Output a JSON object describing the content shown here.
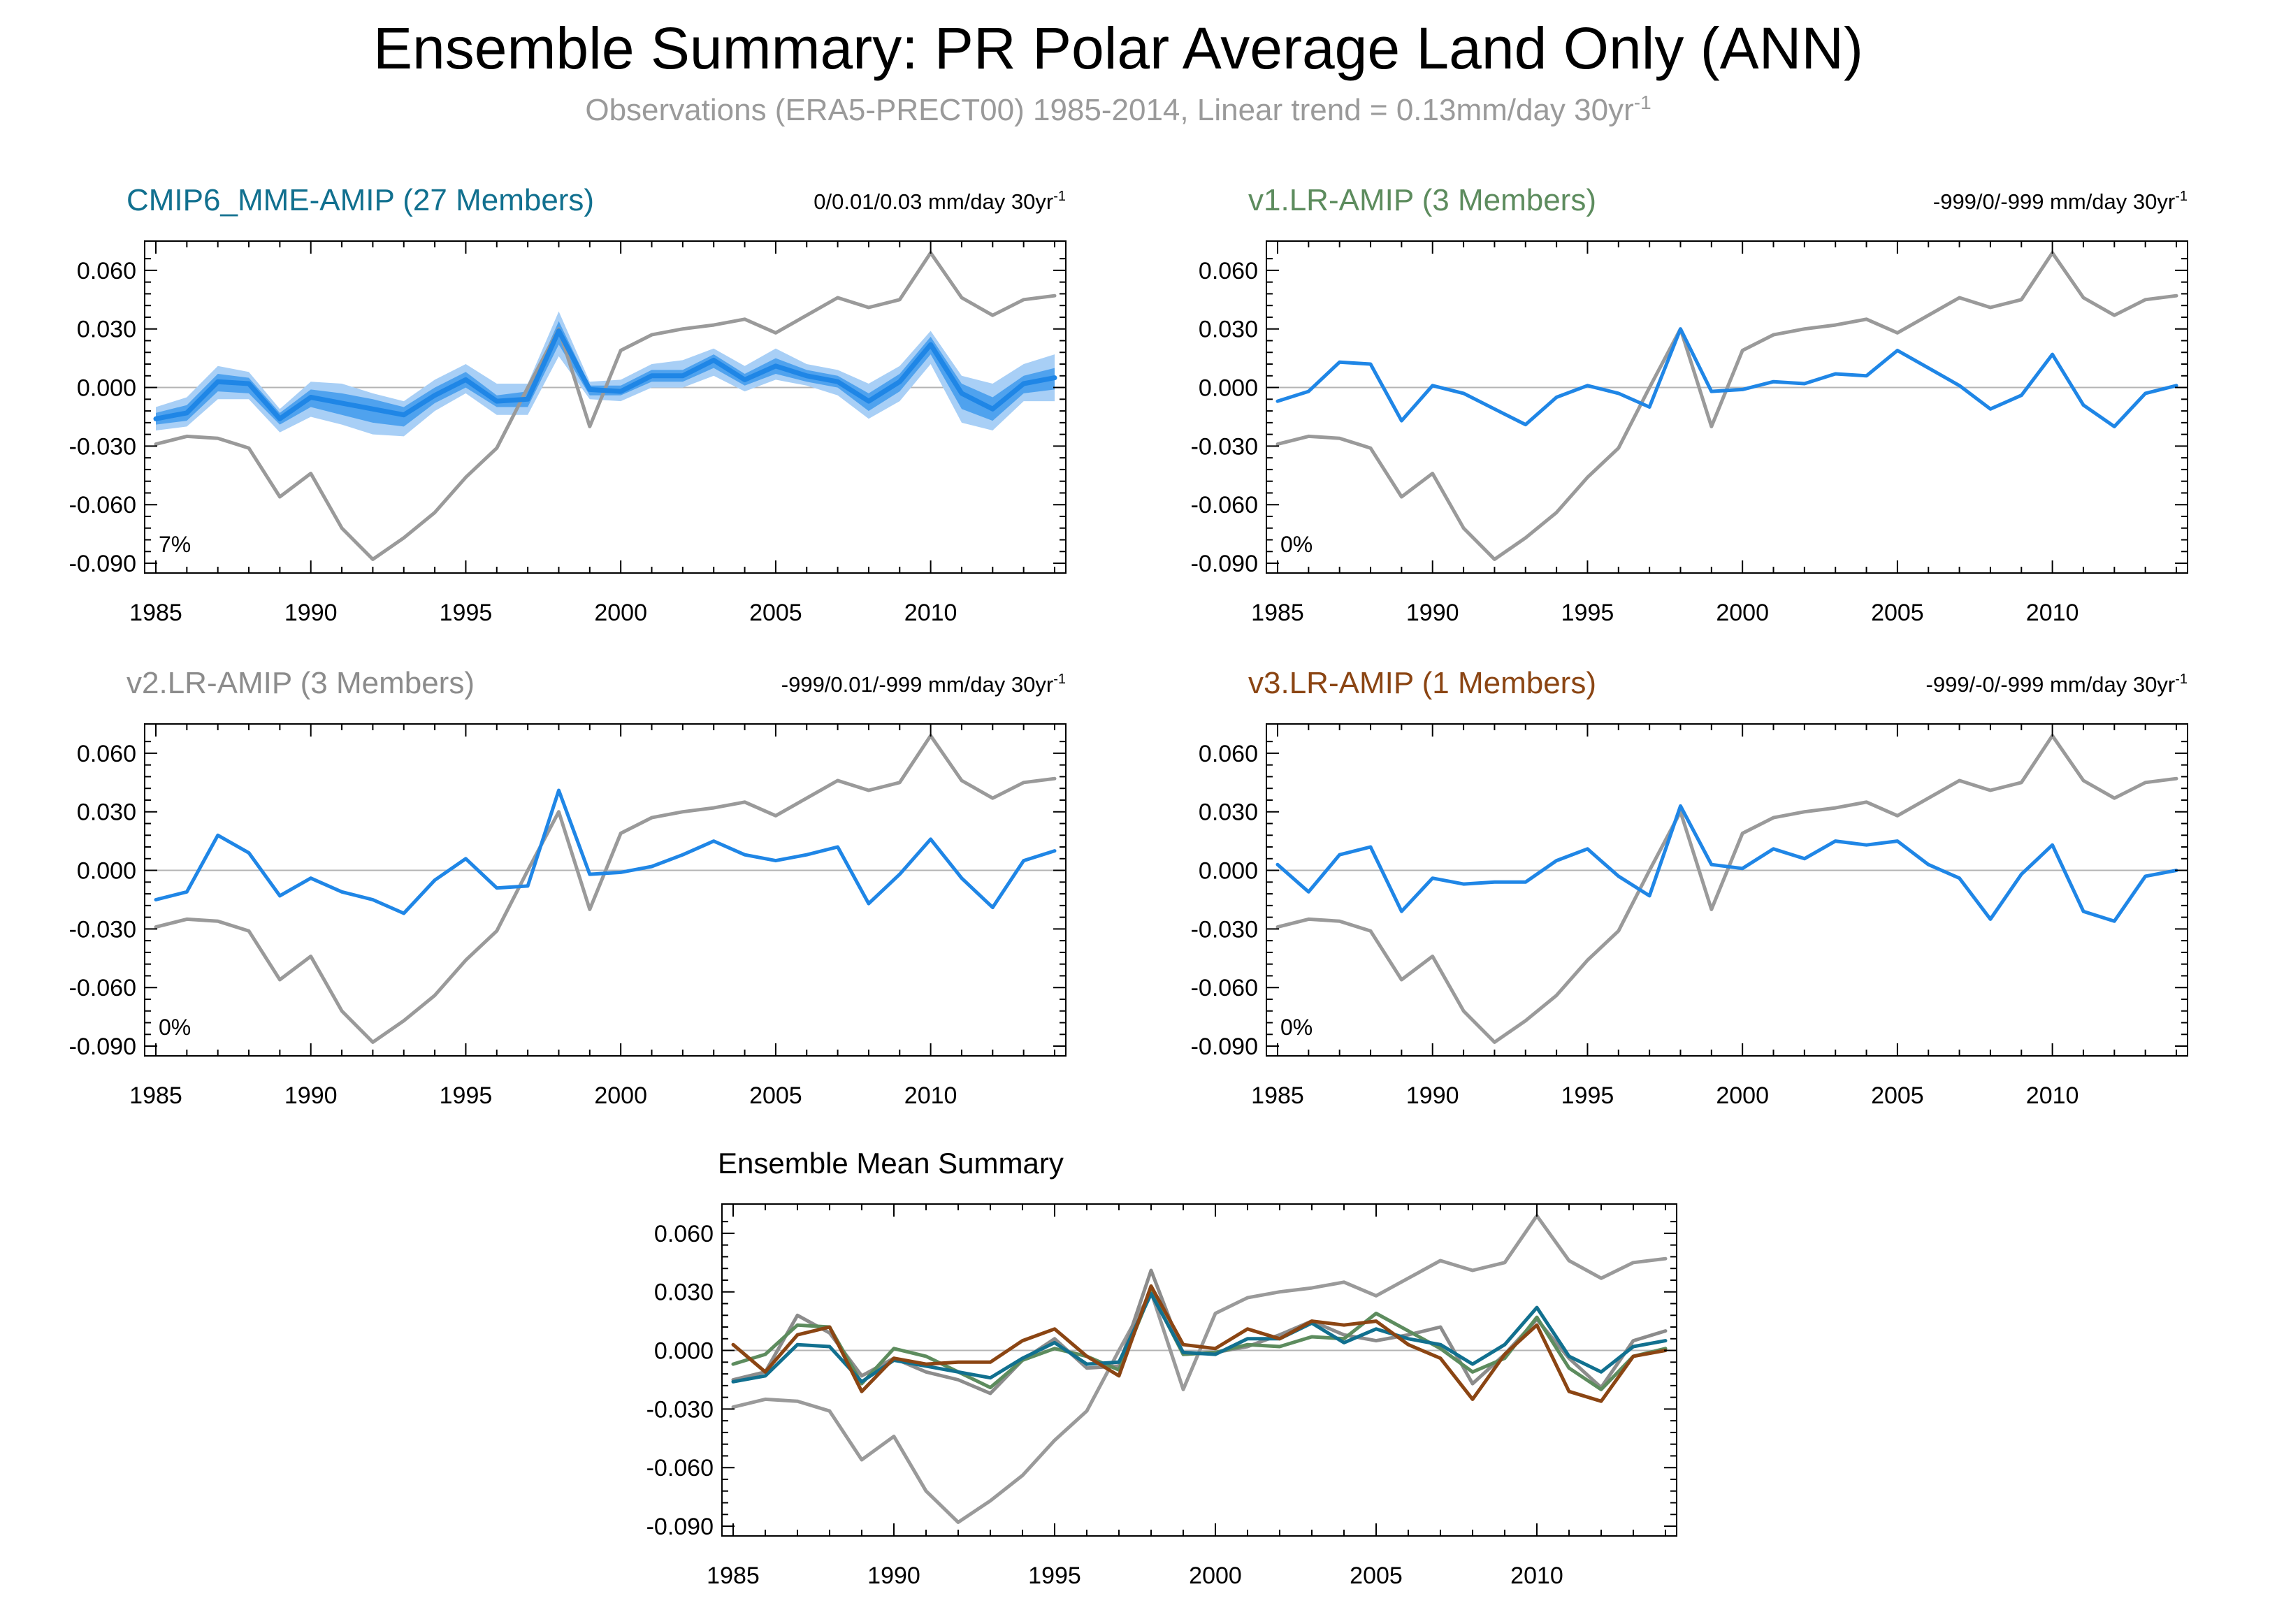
{
  "page": {
    "title": "Ensemble Summary: PR Polar Average Land Only (ANN)",
    "subtitle_main": "Observations (ERA5-PRECT00) 1985-2014, Linear trend = 0.13mm/day 30yr",
    "subtitle_sup": "-1"
  },
  "colors": {
    "obs": "#9a9a9a",
    "model": "#1f86e6",
    "band_outer": "#a8cff6",
    "band_inner": "#4fa2ee",
    "zero_line": "#b4b4b4",
    "mme": "#11708f",
    "v1": "#5d8c5e",
    "v2": "#8c8c8c",
    "v3": "#8b4513"
  },
  "observations": {
    "name": "ERA5-PRECT00",
    "values": [
      -0.029,
      -0.025,
      -0.026,
      -0.031,
      -0.056,
      -0.044,
      -0.072,
      -0.088,
      -0.077,
      -0.064,
      -0.046,
      -0.031,
      0.0,
      0.03,
      -0.02,
      0.019,
      0.027,
      0.03,
      0.032,
      0.035,
      0.028,
      0.037,
      0.046,
      0.041,
      0.045,
      0.069,
      0.046,
      0.037,
      0.045,
      0.047
    ]
  },
  "chart_data": [
    {
      "id": "mme",
      "type": "line",
      "title": "CMIP6_MME-AMIP (27 Members)",
      "trend_text": "0/0.01/0.03 mm/day 30yr",
      "trend_sup": "-1",
      "annotation": "7%",
      "x": [
        1985,
        1986,
        1987,
        1988,
        1989,
        1990,
        1991,
        1992,
        1993,
        1994,
        1995,
        1996,
        1997,
        1998,
        1999,
        2000,
        2001,
        2002,
        2003,
        2004,
        2005,
        2006,
        2007,
        2008,
        2009,
        2010,
        2011,
        2012,
        2013,
        2014
      ],
      "xticks": [
        1985,
        1990,
        1995,
        2000,
        2005,
        2010
      ],
      "yticks": [
        "0.060",
        "0.030",
        "0.000",
        "-0.030",
        "-0.060",
        "-0.090"
      ],
      "ylim": [
        -0.095,
        0.075
      ],
      "series": [
        {
          "name": "CMIP6_MME-AMIP",
          "values": [
            -0.016,
            -0.013,
            0.003,
            0.002,
            -0.016,
            -0.005,
            -0.008,
            -0.011,
            -0.014,
            -0.004,
            0.004,
            -0.007,
            -0.006,
            0.029,
            -0.001,
            -0.002,
            0.006,
            0.006,
            0.014,
            0.004,
            0.011,
            0.006,
            0.003,
            -0.007,
            0.003,
            0.022,
            -0.003,
            -0.011,
            0.002,
            0.005
          ]
        }
      ],
      "band_outer_lo": [
        -0.022,
        -0.02,
        -0.006,
        -0.006,
        -0.023,
        -0.015,
        -0.019,
        -0.024,
        -0.025,
        -0.012,
        -0.003,
        -0.014,
        -0.014,
        0.016,
        -0.006,
        -0.007,
        0.0,
        0.0,
        0.006,
        -0.002,
        0.004,
        0.001,
        -0.004,
        -0.016,
        -0.007,
        0.012,
        -0.018,
        -0.022,
        -0.007,
        -0.007
      ],
      "band_outer_hi": [
        -0.01,
        -0.005,
        0.011,
        0.008,
        -0.011,
        0.003,
        0.002,
        -0.003,
        -0.007,
        0.004,
        0.012,
        0.002,
        0.002,
        0.039,
        0.003,
        0.004,
        0.012,
        0.014,
        0.02,
        0.011,
        0.02,
        0.012,
        0.009,
        0.002,
        0.011,
        0.029,
        0.006,
        0.002,
        0.012,
        0.017
      ],
      "band_inner_lo": [
        -0.019,
        -0.017,
        -0.002,
        -0.003,
        -0.019,
        -0.01,
        -0.014,
        -0.018,
        -0.02,
        -0.008,
        0.0,
        -0.01,
        -0.01,
        0.022,
        -0.004,
        -0.004,
        0.003,
        0.003,
        0.01,
        0.001,
        0.007,
        0.003,
        0.0,
        -0.012,
        -0.002,
        0.017,
        -0.011,
        -0.017,
        -0.003,
        -0.001
      ],
      "band_inner_hi": [
        -0.013,
        -0.009,
        0.007,
        0.005,
        -0.013,
        -0.001,
        -0.003,
        -0.006,
        -0.01,
        0.0,
        0.008,
        -0.004,
        -0.002,
        0.034,
        0.001,
        0.001,
        0.009,
        0.009,
        0.017,
        0.007,
        0.015,
        0.009,
        0.006,
        -0.003,
        0.007,
        0.026,
        0.002,
        -0.005,
        0.006,
        0.01
      ]
    },
    {
      "id": "v1",
      "type": "line",
      "title": "v1.LR-AMIP (3 Members)",
      "trend_text": "-999/0/-999 mm/day 30yr",
      "trend_sup": "-1",
      "annotation": "0%",
      "x": [
        1985,
        1986,
        1987,
        1988,
        1989,
        1990,
        1991,
        1992,
        1993,
        1994,
        1995,
        1996,
        1997,
        1998,
        1999,
        2000,
        2001,
        2002,
        2003,
        2004,
        2005,
        2006,
        2007,
        2008,
        2009,
        2010,
        2011,
        2012,
        2013,
        2014
      ],
      "xticks": [
        1985,
        1990,
        1995,
        2000,
        2005,
        2010
      ],
      "yticks": [
        "0.060",
        "0.030",
        "0.000",
        "-0.030",
        "-0.060",
        "-0.090"
      ],
      "ylim": [
        -0.095,
        0.075
      ],
      "series": [
        {
          "name": "v1.LR-AMIP",
          "values": [
            -0.007,
            -0.002,
            0.013,
            0.012,
            -0.017,
            0.001,
            -0.003,
            -0.011,
            -0.019,
            -0.005,
            0.001,
            -0.003,
            -0.01,
            0.03,
            -0.002,
            -0.001,
            0.003,
            0.002,
            0.007,
            0.006,
            0.019,
            0.01,
            0.001,
            -0.011,
            -0.004,
            0.017,
            -0.009,
            -0.02,
            -0.003,
            0.001
          ]
        }
      ]
    },
    {
      "id": "v2",
      "type": "line",
      "title": "v2.LR-AMIP (3 Members)",
      "trend_text": "-999/0.01/-999 mm/day 30yr",
      "trend_sup": "-1",
      "annotation": "0%",
      "x": [
        1985,
        1986,
        1987,
        1988,
        1989,
        1990,
        1991,
        1992,
        1993,
        1994,
        1995,
        1996,
        1997,
        1998,
        1999,
        2000,
        2001,
        2002,
        2003,
        2004,
        2005,
        2006,
        2007,
        2008,
        2009,
        2010,
        2011,
        2012,
        2013,
        2014
      ],
      "xticks": [
        1985,
        1990,
        1995,
        2000,
        2005,
        2010
      ],
      "yticks": [
        "0.060",
        "0.030",
        "0.000",
        "-0.030",
        "-0.060",
        "-0.090"
      ],
      "ylim": [
        -0.095,
        0.075
      ],
      "series": [
        {
          "name": "v2.LR-AMIP",
          "values": [
            -0.015,
            -0.011,
            0.018,
            0.009,
            -0.013,
            -0.004,
            -0.011,
            -0.015,
            -0.022,
            -0.005,
            0.006,
            -0.009,
            -0.008,
            0.041,
            -0.002,
            -0.001,
            0.002,
            0.008,
            0.015,
            0.008,
            0.005,
            0.008,
            0.012,
            -0.017,
            -0.002,
            0.016,
            -0.004,
            -0.019,
            0.005,
            0.01
          ]
        }
      ]
    },
    {
      "id": "v3",
      "type": "line",
      "title": "v3.LR-AMIP (1 Members)",
      "trend_text": "-999/-0/-999 mm/day 30yr",
      "trend_sup": "-1",
      "annotation": "0%",
      "x": [
        1985,
        1986,
        1987,
        1988,
        1989,
        1990,
        1991,
        1992,
        1993,
        1994,
        1995,
        1996,
        1997,
        1998,
        1999,
        2000,
        2001,
        2002,
        2003,
        2004,
        2005,
        2006,
        2007,
        2008,
        2009,
        2010,
        2011,
        2012,
        2013,
        2014
      ],
      "xticks": [
        1985,
        1990,
        1995,
        2000,
        2005,
        2010
      ],
      "yticks": [
        "0.060",
        "0.030",
        "0.000",
        "-0.030",
        "-0.060",
        "-0.090"
      ],
      "ylim": [
        -0.095,
        0.075
      ],
      "series": [
        {
          "name": "v3.LR-AMIP",
          "values": [
            0.003,
            -0.011,
            0.008,
            0.012,
            -0.021,
            -0.004,
            -0.007,
            -0.006,
            -0.006,
            0.005,
            0.011,
            -0.003,
            -0.013,
            0.033,
            0.003,
            0.001,
            0.011,
            0.006,
            0.015,
            0.013,
            0.015,
            0.003,
            -0.004,
            -0.025,
            -0.002,
            0.013,
            -0.021,
            -0.026,
            -0.003,
            0.0
          ]
        }
      ]
    },
    {
      "id": "summary",
      "type": "line",
      "title": "Ensemble Mean Summary",
      "x": [
        1985,
        1986,
        1987,
        1988,
        1989,
        1990,
        1991,
        1992,
        1993,
        1994,
        1995,
        1996,
        1997,
        1998,
        1999,
        2000,
        2001,
        2002,
        2003,
        2004,
        2005,
        2006,
        2007,
        2008,
        2009,
        2010,
        2011,
        2012,
        2013,
        2014
      ],
      "xticks": [
        1985,
        1990,
        1995,
        2000,
        2005,
        2010
      ],
      "yticks": [
        "0.060",
        "0.030",
        "0.000",
        "-0.030",
        "-0.060",
        "-0.090"
      ],
      "ylim": [
        -0.095,
        0.075
      ],
      "series": [
        {
          "name": "v2.LR-AMIP",
          "values": [
            -0.015,
            -0.011,
            0.018,
            0.009,
            -0.013,
            -0.004,
            -0.011,
            -0.015,
            -0.022,
            -0.005,
            0.006,
            -0.009,
            -0.008,
            0.041,
            -0.002,
            -0.001,
            0.002,
            0.008,
            0.015,
            0.008,
            0.005,
            0.008,
            0.012,
            -0.017,
            -0.002,
            0.016,
            -0.004,
            -0.019,
            0.005,
            0.01
          ]
        },
        {
          "name": "v1.LR-AMIP",
          "values": [
            -0.007,
            -0.002,
            0.013,
            0.012,
            -0.017,
            0.001,
            -0.003,
            -0.011,
            -0.019,
            -0.005,
            0.001,
            -0.003,
            -0.01,
            0.03,
            -0.002,
            -0.001,
            0.003,
            0.002,
            0.007,
            0.006,
            0.019,
            0.01,
            0.001,
            -0.011,
            -0.004,
            0.017,
            -0.009,
            -0.02,
            -0.003,
            0.001
          ]
        },
        {
          "name": "CMIP6_MME-AMIP",
          "values": [
            -0.016,
            -0.013,
            0.003,
            0.002,
            -0.016,
            -0.005,
            -0.008,
            -0.011,
            -0.014,
            -0.004,
            0.004,
            -0.007,
            -0.006,
            0.029,
            -0.001,
            -0.002,
            0.006,
            0.006,
            0.014,
            0.004,
            0.011,
            0.006,
            0.003,
            -0.007,
            0.003,
            0.022,
            -0.003,
            -0.011,
            0.002,
            0.005
          ]
        },
        {
          "name": "v3.LR-AMIP",
          "values": [
            0.003,
            -0.011,
            0.008,
            0.012,
            -0.021,
            -0.004,
            -0.007,
            -0.006,
            -0.006,
            0.005,
            0.011,
            -0.003,
            -0.013,
            0.033,
            0.003,
            0.001,
            0.011,
            0.006,
            0.015,
            0.013,
            0.015,
            0.003,
            -0.004,
            -0.025,
            -0.002,
            0.013,
            -0.021,
            -0.026,
            -0.003,
            0.0
          ]
        }
      ]
    }
  ]
}
